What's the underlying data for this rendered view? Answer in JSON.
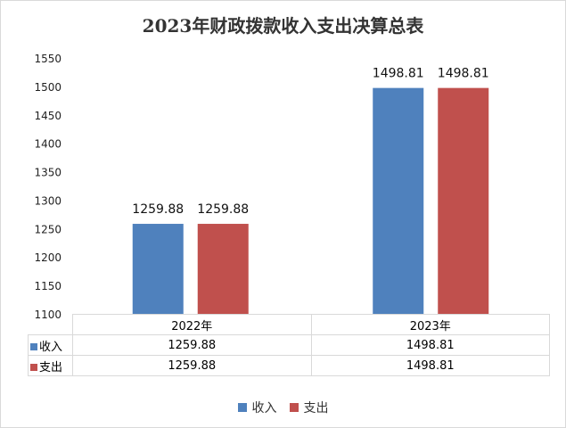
{
  "chart_data": {
    "type": "bar",
    "title": "2023年财政拨款收入支出决算总表",
    "categories": [
      "2022年",
      "2023年"
    ],
    "series": [
      {
        "name": "收入",
        "values": [
          1259.88,
          1498.81
        ],
        "color": "#4F81BD"
      },
      {
        "name": "支出",
        "values": [
          1259.88,
          1498.81
        ],
        "color": "#C0504D"
      }
    ],
    "ylim": [
      1100,
      1550
    ],
    "yticks": [
      1100,
      1150,
      1200,
      1250,
      1300,
      1350,
      1400,
      1450,
      1500,
      1550
    ],
    "data_labels": [
      "1259.88",
      "1259.88",
      "1498.81",
      "1498.81"
    ],
    "grid": false,
    "legend": "bottom",
    "data_table": {
      "rows": [
        {
          "label": "收入",
          "values": [
            "1259.88",
            "1498.81"
          ]
        },
        {
          "label": "支出",
          "values": [
            "1259.88",
            "1498.81"
          ]
        }
      ]
    }
  }
}
